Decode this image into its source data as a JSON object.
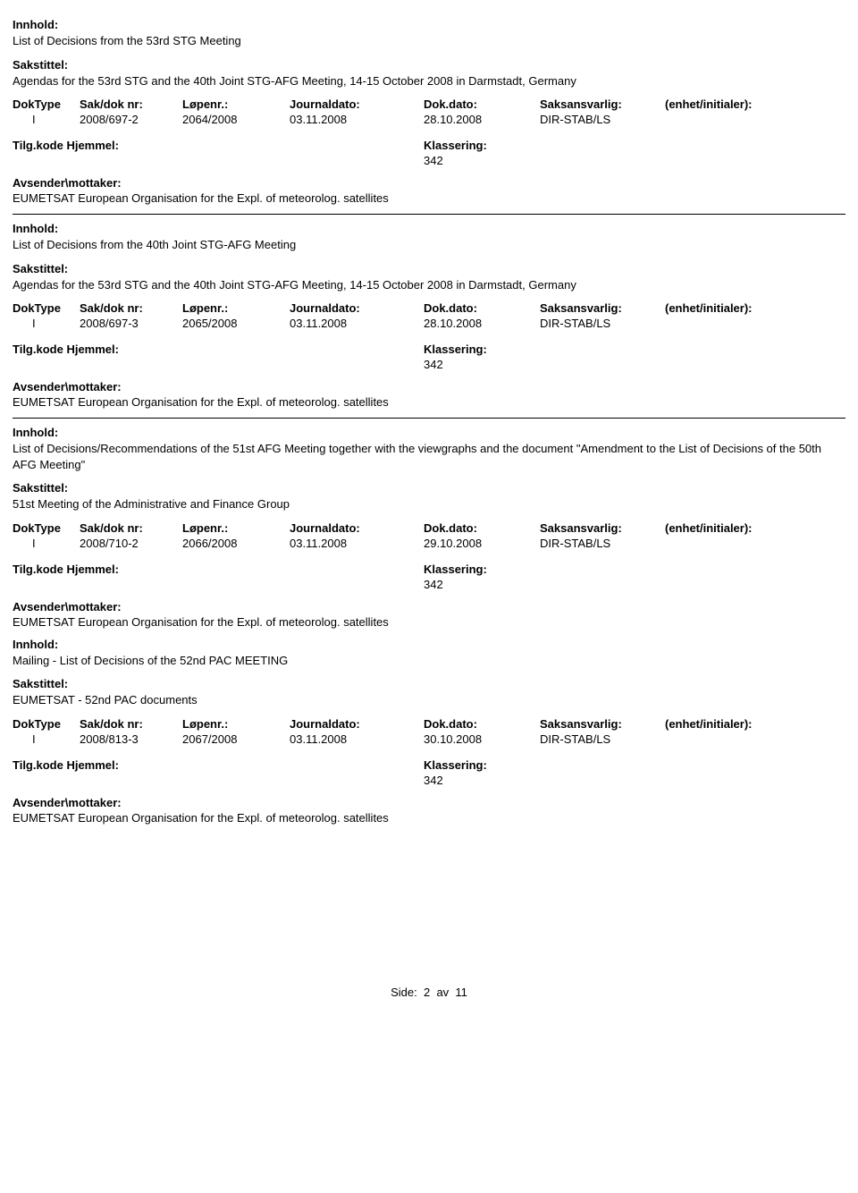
{
  "labels": {
    "innhold": "Innhold:",
    "sakstittel": "Sakstittel:",
    "doktype": "DokType",
    "sakdok": "Sak/dok nr:",
    "lopenr": "Løpenr.:",
    "journaldato": "Journaldato:",
    "dokdato": "Dok.dato:",
    "saksansvarlig": "Saksansvarlig:",
    "enhet": "(enhet/initialer):",
    "tilgkode": "Tilg.kode",
    "hjemmel": "Hjemmel:",
    "klassering": "Klassering:",
    "avsender": "Avsender\\mottaker:"
  },
  "entries": [
    {
      "innhold": "List of Decisions from the 53rd STG Meeting",
      "sakstittel": "Agendas for the 53rd STG and the 40th Joint STG-AFG Meeting, 14-15 October 2008 in Darmstadt, Germany",
      "doktype": "I",
      "sakdok": "2008/697-2",
      "lopenr": "2064/2008",
      "journaldato": "03.11.2008",
      "dokdato": "28.10.2008",
      "saksansvarlig": "DIR-STAB/LS",
      "enhet": "",
      "klassering": "342",
      "avsender": "EUMETSAT European Organisation for the Expl. of meteorolog. satellites",
      "has_divider": true
    },
    {
      "innhold": "List of Decisions from the 40th Joint STG-AFG Meeting",
      "sakstittel": "Agendas for the 53rd STG and the 40th Joint STG-AFG Meeting, 14-15 October 2008 in Darmstadt, Germany",
      "doktype": "I",
      "sakdok": "2008/697-3",
      "lopenr": "2065/2008",
      "journaldato": "03.11.2008",
      "dokdato": "28.10.2008",
      "saksansvarlig": "DIR-STAB/LS",
      "enhet": "",
      "klassering": "342",
      "avsender": "EUMETSAT European Organisation for the Expl. of meteorolog. satellites",
      "has_divider": true
    },
    {
      "innhold": "List of Decisions/Recommendations of the 51st AFG Meeting together with the viewgraphs and the document \"Amendment to the List of Decisions of the 50th AFG Meeting\"",
      "sakstittel": "51st Meeting of the Administrative and Finance Group",
      "doktype": "I",
      "sakdok": "2008/710-2",
      "lopenr": "2066/2008",
      "journaldato": "03.11.2008",
      "dokdato": "29.10.2008",
      "saksansvarlig": "DIR-STAB/LS",
      "enhet": "",
      "klassering": "342",
      "avsender": "EUMETSAT European Organisation for the Expl. of meteorolog. satellites",
      "has_divider": false
    },
    {
      "innhold": "Mailing -  List of Decisions of the 52nd PAC MEETING",
      "sakstittel": "EUMETSAT - 52nd PAC documents",
      "doktype": "I",
      "sakdok": "2008/813-3",
      "lopenr": "2067/2008",
      "journaldato": "03.11.2008",
      "dokdato": "30.10.2008",
      "saksansvarlig": "DIR-STAB/LS",
      "enhet": "",
      "klassering": "342",
      "avsender": "EUMETSAT European Organisation for the Expl. of meteorolog. satellites",
      "has_divider": false
    }
  ],
  "pager": {
    "prefix": "Side:",
    "current": "2",
    "sep": "av",
    "total": "11"
  }
}
